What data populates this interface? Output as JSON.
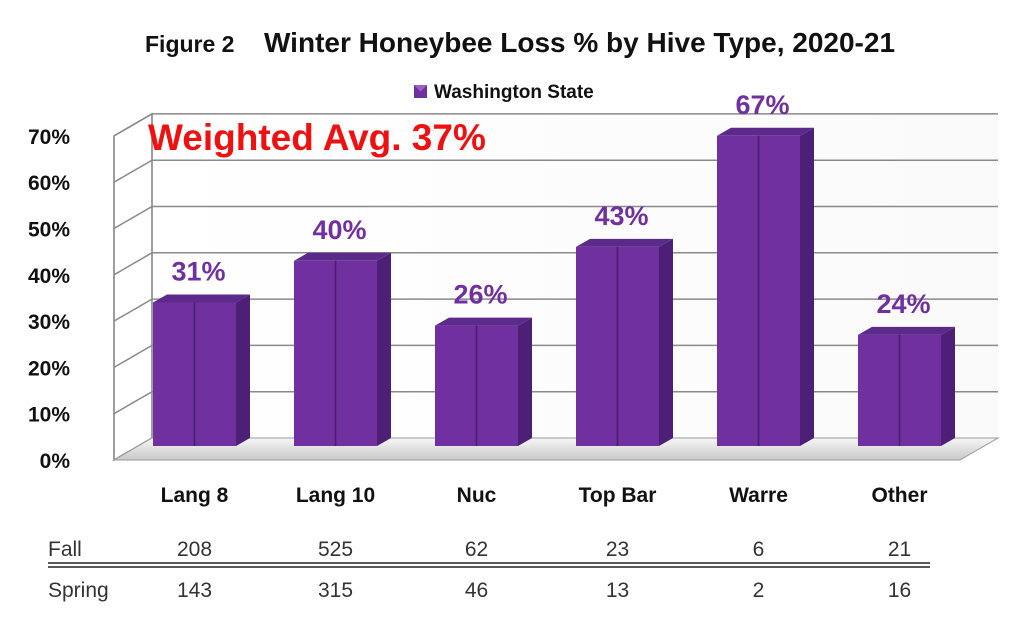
{
  "chart_data": {
    "type": "bar",
    "title_prefix": "Figure 2",
    "title": "Winter Honeybee Loss % by Hive Type, 2020-21",
    "categories": [
      "Lang 8",
      "Lang 10",
      "Nuc",
      "Top Bar",
      "Warre",
      "Other"
    ],
    "series": [
      {
        "name": "Washington State",
        "values": [
          31,
          40,
          26,
          43,
          67,
          24
        ],
        "color": "#7030a0"
      }
    ],
    "data_labels": [
      "31%",
      "40%",
      "26%",
      "43%",
      "67%",
      "24%"
    ],
    "ylim": [
      0,
      70
    ],
    "yticks": [
      "0%",
      "10%",
      "20%",
      "30%",
      "40%",
      "50%",
      "60%",
      "70%"
    ],
    "annotation": "Weighted Avg. 37%",
    "legend_position": "top",
    "grid": true,
    "bar_style": "3d",
    "table_rows": [
      {
        "label": "Fall",
        "values": [
          "208",
          "525",
          "62",
          "23",
          "6",
          "21"
        ]
      },
      {
        "label": "Spring",
        "values": [
          "143",
          "315",
          "46",
          "13",
          "2",
          "16"
        ]
      }
    ]
  }
}
